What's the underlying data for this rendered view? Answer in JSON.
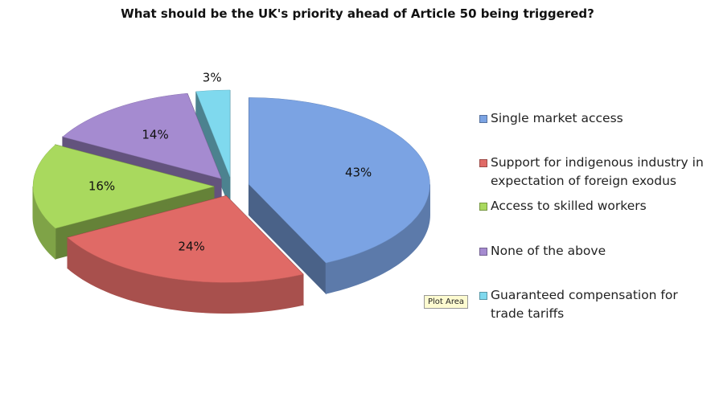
{
  "chart_data": {
    "type": "pie",
    "title": "What should be the UK's priority ahead of Article 50 being triggered?",
    "categories": [
      "Single market access",
      "Support for indigenous industry in expectation of foreign exodus",
      "Access to skilled workers",
      "None of the above",
      "Guaranteed compensation for trade tariffs"
    ],
    "values": [
      43,
      24,
      16,
      14,
      3
    ],
    "value_labels": [
      "43%",
      "24%",
      "16%",
      "14%",
      "3%"
    ],
    "colors": [
      "#7ba3e3",
      "#e06a66",
      "#a9d95e",
      "#a58bd0",
      "#7fd9ee"
    ],
    "legend": "right",
    "tooltip": "Plot Area"
  }
}
